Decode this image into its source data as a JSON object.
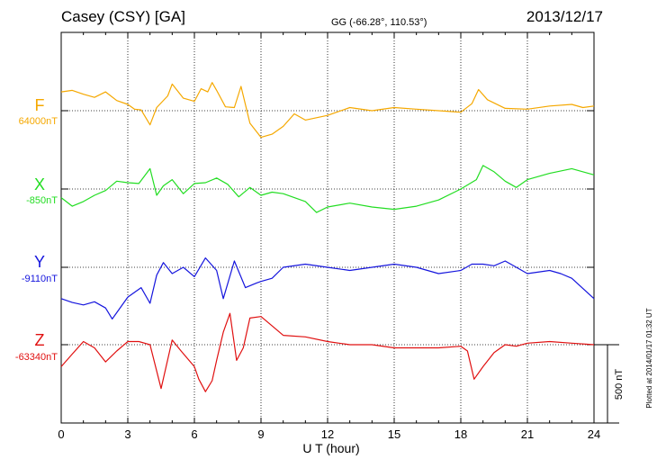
{
  "chart_data": {
    "type": "line",
    "title_left": "Casey (CSY)  [GA]",
    "title_center": "GG (-66.28°, 110.53°)",
    "title_right": "2013/12/17",
    "xlabel": "U T (hour)",
    "xlim": [
      0,
      24
    ],
    "xticks": [
      "0",
      "3",
      "6",
      "9",
      "12",
      "15",
      "18",
      "21",
      "24"
    ],
    "grid": true,
    "scale_bar_label": "500 nT",
    "scale_bar_nT": 500,
    "footer_note": "Plotted at 2014/01/17 01:32 UT",
    "series": [
      {
        "name": "F",
        "baseline_label": "64000nT",
        "color": "#f5a800",
        "x": [
          0,
          0.5,
          1,
          1.5,
          2,
          2.5,
          3,
          3.3,
          3.6,
          4,
          4.3,
          4.8,
          5,
          5.5,
          6,
          6.3,
          6.6,
          6.8,
          7,
          7.4,
          7.8,
          8.1,
          8.5,
          9,
          9.5,
          10,
          10.5,
          11,
          12,
          13,
          14,
          15,
          16,
          17,
          18,
          18.5,
          18.8,
          19.2,
          20,
          21,
          22,
          23,
          23.5,
          24
        ],
        "values": [
          120,
          130,
          105,
          85,
          120,
          65,
          40,
          10,
          5,
          -90,
          20,
          95,
          170,
          80,
          60,
          140,
          120,
          180,
          130,
          25,
          20,
          155,
          -80,
          -170,
          -150,
          -100,
          -20,
          -60,
          -30,
          20,
          0,
          20,
          10,
          0,
          -10,
          45,
          135,
          70,
          15,
          10,
          30,
          40,
          20,
          30
        ]
      },
      {
        "name": "X",
        "baseline_label": "-850nT",
        "color": "#22dd22",
        "x": [
          0,
          0.5,
          1,
          1.5,
          2,
          2.5,
          3,
          3.5,
          4,
          4.3,
          4.6,
          5,
          5.5,
          6,
          6.5,
          7,
          7.5,
          8,
          8.5,
          9,
          9.5,
          10,
          11,
          11.5,
          12,
          13,
          14,
          15,
          16,
          17,
          18,
          18.7,
          19,
          19.5,
          20,
          20.5,
          21,
          22,
          23,
          24
        ],
        "values": [
          -55,
          -110,
          -80,
          -40,
          -10,
          50,
          40,
          35,
          130,
          -40,
          20,
          60,
          -30,
          35,
          40,
          70,
          30,
          -50,
          10,
          -40,
          -20,
          -30,
          -80,
          -150,
          -115,
          -90,
          -115,
          -130,
          -110,
          -70,
          0,
          60,
          150,
          110,
          50,
          10,
          60,
          100,
          130,
          90
        ]
      },
      {
        "name": "Y",
        "baseline_label": "-9110nT",
        "color": "#1515dd",
        "x": [
          0,
          0.5,
          1,
          1.5,
          2,
          2.3,
          3,
          3.6,
          4,
          4.3,
          4.6,
          5,
          5.5,
          6,
          6.5,
          7,
          7.3,
          7.8,
          8.3,
          8.8,
          9,
          9.5,
          10,
          11,
          12,
          13,
          14,
          15,
          16,
          17,
          18,
          18.5,
          19,
          19.5,
          20,
          20.5,
          21,
          22,
          22.5,
          23,
          24
        ],
        "values": [
          -200,
          -225,
          -240,
          -220,
          -260,
          -330,
          -190,
          -130,
          -230,
          -50,
          30,
          -40,
          0,
          -60,
          60,
          -20,
          -200,
          40,
          -130,
          -100,
          -90,
          -70,
          0,
          20,
          0,
          -20,
          0,
          20,
          0,
          -40,
          -20,
          20,
          20,
          10,
          40,
          0,
          -40,
          -20,
          -40,
          -70,
          -200
        ]
      },
      {
        "name": "Z",
        "baseline_label": "-63340nT",
        "color": "#e01010",
        "x": [
          0,
          0.5,
          1,
          1.5,
          2,
          2.5,
          3,
          3.5,
          4,
          4.5,
          5,
          5.4,
          6,
          6.2,
          6.5,
          6.8,
          7,
          7.3,
          7.6,
          7.9,
          8.2,
          8.5,
          9,
          9.5,
          10,
          11,
          12,
          13,
          14,
          15,
          16,
          17,
          18,
          18.3,
          18.6,
          19,
          19.5,
          20,
          20.5,
          21,
          22,
          23,
          24
        ],
        "values": [
          -140,
          -60,
          20,
          -20,
          -110,
          -40,
          20,
          20,
          0,
          -280,
          30,
          -40,
          -140,
          -220,
          -300,
          -230,
          -100,
          80,
          200,
          -100,
          -20,
          170,
          180,
          120,
          60,
          50,
          20,
          0,
          0,
          -20,
          -20,
          -20,
          -10,
          -40,
          -220,
          -140,
          -50,
          0,
          -10,
          10,
          20,
          10,
          0
        ]
      }
    ]
  }
}
